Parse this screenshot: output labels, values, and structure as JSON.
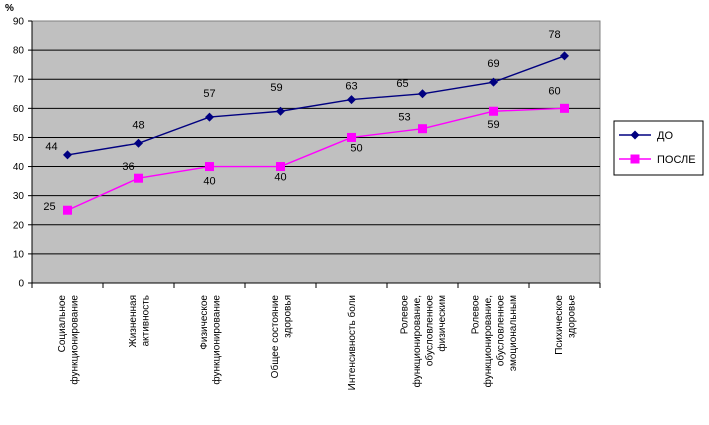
{
  "chart_data": {
    "type": "line",
    "ylabel": "%",
    "ylim": [
      0,
      90
    ],
    "yticks": [
      "0",
      "10",
      "20",
      "30",
      "40",
      "50",
      "60",
      "70",
      "80",
      "90"
    ],
    "grid": true,
    "legend_position": "right",
    "categories": [
      [
        "Социальное",
        "функционирование"
      ],
      [
        "Жизненная",
        "активность"
      ],
      [
        "Физическое",
        "функционирование"
      ],
      [
        "Общее состояние",
        "здоровья"
      ],
      [
        "Интенсивность боли"
      ],
      [
        "Ролевое",
        "функционирование,",
        "обусловленное",
        "физическим"
      ],
      [
        "Ролевое",
        "функционирование,",
        "обусловленное",
        "эмоциональным"
      ],
      [
        "Психическое",
        "здоровье"
      ]
    ],
    "series": [
      {
        "name": "ДО",
        "color": "#000080",
        "marker": "diamond",
        "values": [
          44,
          48,
          57,
          59,
          63,
          65,
          69,
          78
        ],
        "labels": [
          "44",
          "48",
          "57",
          "59",
          "63",
          "65",
          "69",
          "78"
        ]
      },
      {
        "name": "ПОСЛЕ",
        "color": "#ff00ff",
        "marker": "square",
        "values": [
          25,
          36,
          40,
          40,
          50,
          53,
          59,
          60
        ],
        "labels": [
          "25",
          "36",
          "40",
          "40",
          "50",
          "53",
          "59",
          "60"
        ]
      }
    ]
  }
}
